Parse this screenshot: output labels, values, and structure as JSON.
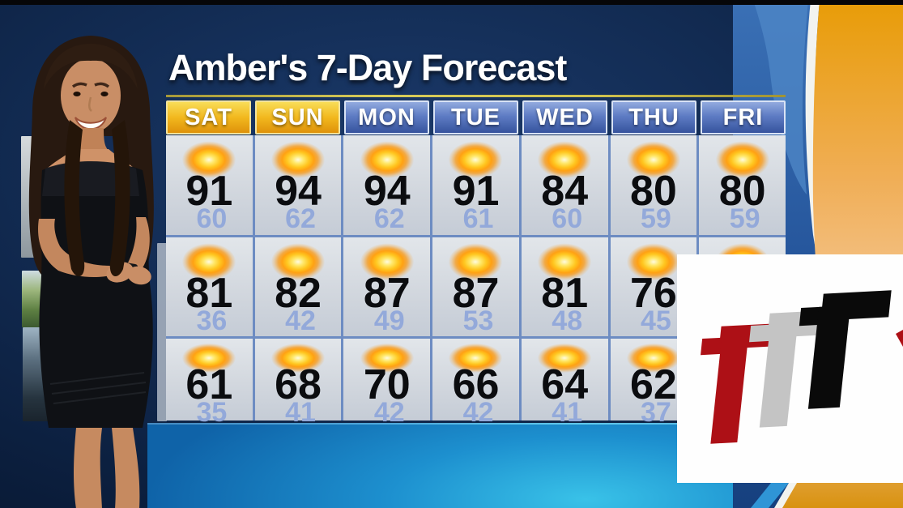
{
  "title": "Amber's 7-Day Forecast",
  "colors": {
    "accent_gold": "#e8a50f",
    "weekend_header": "#f2b81e",
    "weekday_header": "#4a69b4",
    "cell_background": "#d5dae0",
    "high_temp": "#0b0c0f",
    "low_temp": "#93a9da",
    "bottom_band_blue": "#1d90cf",
    "logo_red": "#ad1016",
    "logo_gray": "#c4c4c4",
    "logo_black": "#0a0a0a"
  },
  "forecast": {
    "days": [
      "SAT",
      "SUN",
      "MON",
      "TUE",
      "WED",
      "THU",
      "FRI"
    ],
    "weekend_days": [
      "SAT",
      "SUN"
    ],
    "condition_icon": "sunny-icon",
    "rows": [
      {
        "highs": [
          91,
          94,
          94,
          91,
          84,
          80,
          80
        ],
        "lows": [
          60,
          62,
          62,
          61,
          60,
          59,
          59
        ]
      },
      {
        "highs": [
          81,
          82,
          87,
          87,
          81,
          76,
          null
        ],
        "lows": [
          36,
          42,
          49,
          53,
          48,
          45,
          null
        ]
      },
      {
        "highs": [
          61,
          68,
          70,
          66,
          64,
          62,
          null
        ],
        "lows": [
          35,
          41,
          42,
          42,
          41,
          37,
          null
        ]
      }
    ]
  },
  "logo": {
    "letters": [
      "T",
      "T",
      "T"
    ]
  },
  "chart_data": {
    "type": "table",
    "title": "Amber's 7-Day Forecast",
    "columns": [
      "SAT",
      "SUN",
      "MON",
      "TUE",
      "WED",
      "THU",
      "FRI"
    ],
    "series": [
      {
        "name": "Row 1 High",
        "values": [
          91,
          94,
          94,
          91,
          84,
          80,
          80
        ]
      },
      {
        "name": "Row 1 Low",
        "values": [
          60,
          62,
          62,
          61,
          60,
          59,
          59
        ]
      },
      {
        "name": "Row 2 High",
        "values": [
          81,
          82,
          87,
          87,
          81,
          76,
          null
        ]
      },
      {
        "name": "Row 2 Low",
        "values": [
          36,
          42,
          49,
          53,
          48,
          45,
          null
        ]
      },
      {
        "name": "Row 3 High",
        "values": [
          61,
          68,
          70,
          66,
          64,
          62,
          null
        ]
      },
      {
        "name": "Row 3 Low",
        "values": [
          35,
          41,
          42,
          42,
          41,
          37,
          null
        ]
      }
    ],
    "notes": "All cells show a sunny icon; FRI values in rows 2 and 3 are hidden behind the station logo overlay"
  }
}
